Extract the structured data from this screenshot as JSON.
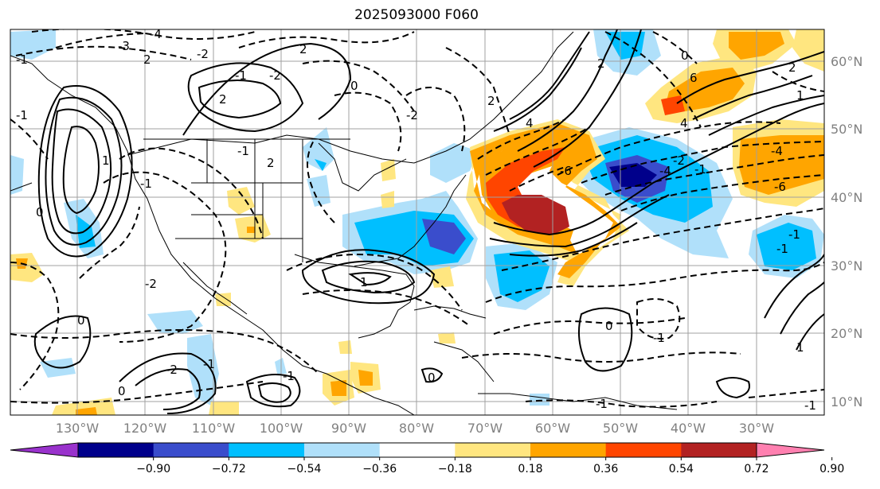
{
  "title": "2025093000 F060",
  "lat_labels": [
    "60°N",
    "50°N",
    "40°N",
    "30°N",
    "20°N",
    "10°N"
  ],
  "lon_labels": [
    "130°W",
    "120°W",
    "110°W",
    "100°W",
    "90°W",
    "80°W",
    "70°W",
    "60°W",
    "50°W",
    "40°W",
    "30°W"
  ],
  "colorbar": {
    "colors": [
      "#9932cc",
      "#00008b",
      "#3a4dcc",
      "#00bfff",
      "#b0e0fa",
      "#ffffff",
      "#ffe680",
      "#ffa500",
      "#ff4500",
      "#b22222",
      "#ff80b0"
    ],
    "ticks": [
      "−0.90",
      "−0.72",
      "−0.54",
      "−0.36",
      "−0.18",
      "0.18",
      "0.36",
      "0.54",
      "0.72",
      "0.90"
    ]
  },
  "contour_labels": [
    "-3",
    "-4",
    "2",
    "-2",
    "-1",
    "0",
    "1",
    "2",
    "-2",
    "2",
    "-1",
    "-1",
    "2",
    "1",
    "-2",
    "0",
    "-1",
    "-1",
    "0",
    "-2",
    "-1",
    "6",
    "4",
    "-6",
    "-4",
    "-1",
    "-2",
    "-4",
    "-6",
    "4",
    "2",
    "-1",
    "0",
    "-1",
    "1",
    "-1",
    "2",
    "1",
    "0",
    "-1",
    "0",
    "-1",
    "0",
    "-2",
    "2",
    "-1"
  ]
}
